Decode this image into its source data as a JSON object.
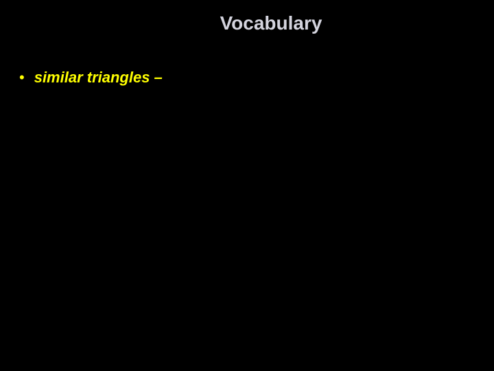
{
  "slide": {
    "title": "Vocabulary",
    "bullets": [
      {
        "text": "similar triangles –"
      }
    ],
    "colors": {
      "background": "#000000",
      "title_color": "#d4d4de",
      "bullet_color": "#ffff00"
    },
    "typography": {
      "title_fontsize": 28,
      "title_weight": "bold",
      "bullet_fontsize": 22,
      "bullet_weight": "bold",
      "bullet_style": "italic",
      "font_family": "Arial"
    }
  }
}
